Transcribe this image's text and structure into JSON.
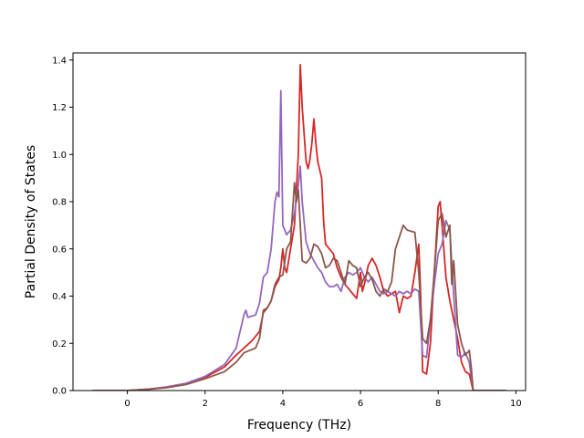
{
  "chart_data": {
    "type": "line",
    "title": "",
    "xlabel": "Frequency (THz)",
    "ylabel": "Partial Density of States",
    "xlim": [
      -1.4,
      10.25
    ],
    "ylim": [
      0.0,
      1.43
    ],
    "xticks": [
      0,
      2,
      4,
      6,
      8,
      10
    ],
    "yticks": [
      0.0,
      0.2,
      0.4,
      0.6,
      0.8,
      1.0,
      1.2,
      1.4
    ],
    "xtick_labels": [
      "0",
      "2",
      "4",
      "6",
      "8",
      "10"
    ],
    "ytick_labels": [
      "0.0",
      "0.2",
      "0.4",
      "0.6",
      "0.8",
      "1.0",
      "1.2",
      "1.4"
    ],
    "grid": false,
    "series": [
      {
        "color": "#d62728",
        "points": [
          [
            -0.9,
            0
          ],
          [
            0,
            0
          ],
          [
            0.5,
            0.005
          ],
          [
            1.0,
            0.015
          ],
          [
            1.5,
            0.03
          ],
          [
            2.0,
            0.055
          ],
          [
            2.5,
            0.1
          ],
          [
            2.8,
            0.15
          ],
          [
            3.0,
            0.18
          ],
          [
            3.2,
            0.21
          ],
          [
            3.4,
            0.25
          ],
          [
            3.5,
            0.33
          ],
          [
            3.6,
            0.35
          ],
          [
            3.7,
            0.38
          ],
          [
            3.8,
            0.44
          ],
          [
            3.9,
            0.47
          ],
          [
            3.95,
            0.52
          ],
          [
            4.0,
            0.6
          ],
          [
            4.05,
            0.52
          ],
          [
            4.1,
            0.5
          ],
          [
            4.2,
            0.6
          ],
          [
            4.3,
            0.7
          ],
          [
            4.4,
            1.0
          ],
          [
            4.45,
            1.38
          ],
          [
            4.5,
            1.2
          ],
          [
            4.6,
            0.97
          ],
          [
            4.65,
            0.94
          ],
          [
            4.7,
            0.98
          ],
          [
            4.75,
            1.05
          ],
          [
            4.8,
            1.15
          ],
          [
            4.85,
            1.05
          ],
          [
            4.9,
            0.97
          ],
          [
            5.0,
            0.9
          ],
          [
            5.05,
            0.72
          ],
          [
            5.1,
            0.62
          ],
          [
            5.2,
            0.6
          ],
          [
            5.3,
            0.58
          ],
          [
            5.4,
            0.52
          ],
          [
            5.5,
            0.48
          ],
          [
            5.6,
            0.45
          ],
          [
            5.7,
            0.43
          ],
          [
            5.8,
            0.41
          ],
          [
            5.9,
            0.39
          ],
          [
            6.0,
            0.5
          ],
          [
            6.05,
            0.42
          ],
          [
            6.1,
            0.45
          ],
          [
            6.2,
            0.53
          ],
          [
            6.3,
            0.56
          ],
          [
            6.4,
            0.53
          ],
          [
            6.5,
            0.48
          ],
          [
            6.6,
            0.42
          ],
          [
            6.7,
            0.4
          ],
          [
            6.8,
            0.41
          ],
          [
            6.9,
            0.42
          ],
          [
            7.0,
            0.33
          ],
          [
            7.1,
            0.4
          ],
          [
            7.2,
            0.39
          ],
          [
            7.3,
            0.4
          ],
          [
            7.4,
            0.5
          ],
          [
            7.5,
            0.62
          ],
          [
            7.55,
            0.4
          ],
          [
            7.6,
            0.08
          ],
          [
            7.7,
            0.07
          ],
          [
            7.8,
            0.2
          ],
          [
            7.9,
            0.5
          ],
          [
            8.0,
            0.78
          ],
          [
            8.05,
            0.8
          ],
          [
            8.1,
            0.7
          ],
          [
            8.2,
            0.48
          ],
          [
            8.3,
            0.38
          ],
          [
            8.4,
            0.3
          ],
          [
            8.5,
            0.22
          ],
          [
            8.6,
            0.12
          ],
          [
            8.7,
            0.08
          ],
          [
            8.8,
            0.07
          ],
          [
            8.9,
            0.0
          ],
          [
            9.75,
            0.0
          ]
        ]
      },
      {
        "color": "#9467bd",
        "points": [
          [
            -0.9,
            0
          ],
          [
            0,
            0
          ],
          [
            0.5,
            0.005
          ],
          [
            1.0,
            0.015
          ],
          [
            1.5,
            0.03
          ],
          [
            2.0,
            0.06
          ],
          [
            2.5,
            0.11
          ],
          [
            2.8,
            0.18
          ],
          [
            2.9,
            0.25
          ],
          [
            3.0,
            0.32
          ],
          [
            3.05,
            0.34
          ],
          [
            3.1,
            0.31
          ],
          [
            3.3,
            0.32
          ],
          [
            3.4,
            0.37
          ],
          [
            3.5,
            0.48
          ],
          [
            3.6,
            0.5
          ],
          [
            3.7,
            0.6
          ],
          [
            3.8,
            0.8
          ],
          [
            3.85,
            0.84
          ],
          [
            3.9,
            0.82
          ],
          [
            3.95,
            1.27
          ],
          [
            4.0,
            0.7
          ],
          [
            4.1,
            0.66
          ],
          [
            4.2,
            0.68
          ],
          [
            4.3,
            0.75
          ],
          [
            4.4,
            0.87
          ],
          [
            4.45,
            0.95
          ],
          [
            4.5,
            0.8
          ],
          [
            4.6,
            0.63
          ],
          [
            4.7,
            0.58
          ],
          [
            4.8,
            0.55
          ],
          [
            4.9,
            0.52
          ],
          [
            5.0,
            0.5
          ],
          [
            5.1,
            0.46
          ],
          [
            5.2,
            0.44
          ],
          [
            5.3,
            0.44
          ],
          [
            5.4,
            0.45
          ],
          [
            5.5,
            0.42
          ],
          [
            5.6,
            0.48
          ],
          [
            5.7,
            0.5
          ],
          [
            5.8,
            0.49
          ],
          [
            5.9,
            0.5
          ],
          [
            6.0,
            0.52
          ],
          [
            6.1,
            0.48
          ],
          [
            6.2,
            0.46
          ],
          [
            6.3,
            0.48
          ],
          [
            6.4,
            0.45
          ],
          [
            6.5,
            0.42
          ],
          [
            6.6,
            0.41
          ],
          [
            6.7,
            0.42
          ],
          [
            6.8,
            0.41
          ],
          [
            6.9,
            0.4
          ],
          [
            7.0,
            0.42
          ],
          [
            7.1,
            0.41
          ],
          [
            7.2,
            0.42
          ],
          [
            7.3,
            0.41
          ],
          [
            7.4,
            0.43
          ],
          [
            7.5,
            0.42
          ],
          [
            7.6,
            0.15
          ],
          [
            7.7,
            0.14
          ],
          [
            7.8,
            0.3
          ],
          [
            7.9,
            0.45
          ],
          [
            8.0,
            0.58
          ],
          [
            8.1,
            0.62
          ],
          [
            8.2,
            0.72
          ],
          [
            8.3,
            0.68
          ],
          [
            8.4,
            0.4
          ],
          [
            8.5,
            0.15
          ],
          [
            8.6,
            0.14
          ],
          [
            8.7,
            0.16
          ],
          [
            8.8,
            0.12
          ],
          [
            8.9,
            0.0
          ],
          [
            9.75,
            0.0
          ]
        ]
      },
      {
        "color": "#8c564b",
        "points": [
          [
            -0.9,
            0
          ],
          [
            0,
            0
          ],
          [
            0.5,
            0.005
          ],
          [
            1.0,
            0.012
          ],
          [
            1.5,
            0.025
          ],
          [
            2.0,
            0.05
          ],
          [
            2.5,
            0.08
          ],
          [
            2.8,
            0.12
          ],
          [
            3.0,
            0.16
          ],
          [
            3.3,
            0.18
          ],
          [
            3.4,
            0.22
          ],
          [
            3.5,
            0.34
          ],
          [
            3.6,
            0.35
          ],
          [
            3.7,
            0.38
          ],
          [
            3.8,
            0.45
          ],
          [
            3.9,
            0.48
          ],
          [
            4.0,
            0.49
          ],
          [
            4.1,
            0.6
          ],
          [
            4.2,
            0.63
          ],
          [
            4.3,
            0.88
          ],
          [
            4.35,
            0.8
          ],
          [
            4.4,
            0.85
          ],
          [
            4.5,
            0.55
          ],
          [
            4.6,
            0.54
          ],
          [
            4.7,
            0.56
          ],
          [
            4.8,
            0.62
          ],
          [
            4.9,
            0.61
          ],
          [
            5.0,
            0.58
          ],
          [
            5.1,
            0.52
          ],
          [
            5.2,
            0.53
          ],
          [
            5.3,
            0.56
          ],
          [
            5.4,
            0.55
          ],
          [
            5.5,
            0.5
          ],
          [
            5.6,
            0.45
          ],
          [
            5.7,
            0.55
          ],
          [
            5.8,
            0.53
          ],
          [
            5.9,
            0.52
          ],
          [
            6.0,
            0.44
          ],
          [
            6.1,
            0.48
          ],
          [
            6.2,
            0.5
          ],
          [
            6.3,
            0.47
          ],
          [
            6.4,
            0.42
          ],
          [
            6.5,
            0.4
          ],
          [
            6.6,
            0.43
          ],
          [
            6.7,
            0.42
          ],
          [
            6.8,
            0.46
          ],
          [
            6.9,
            0.6
          ],
          [
            7.0,
            0.65
          ],
          [
            7.1,
            0.7
          ],
          [
            7.2,
            0.68
          ],
          [
            7.4,
            0.67
          ],
          [
            7.5,
            0.5
          ],
          [
            7.6,
            0.22
          ],
          [
            7.7,
            0.2
          ],
          [
            7.8,
            0.3
          ],
          [
            7.9,
            0.5
          ],
          [
            8.0,
            0.72
          ],
          [
            8.1,
            0.75
          ],
          [
            8.2,
            0.65
          ],
          [
            8.3,
            0.7
          ],
          [
            8.35,
            0.45
          ],
          [
            8.4,
            0.55
          ],
          [
            8.5,
            0.28
          ],
          [
            8.6,
            0.2
          ],
          [
            8.7,
            0.15
          ],
          [
            8.8,
            0.17
          ],
          [
            8.85,
            0.1
          ],
          [
            8.9,
            0.0
          ],
          [
            9.75,
            0.0
          ]
        ]
      }
    ]
  }
}
